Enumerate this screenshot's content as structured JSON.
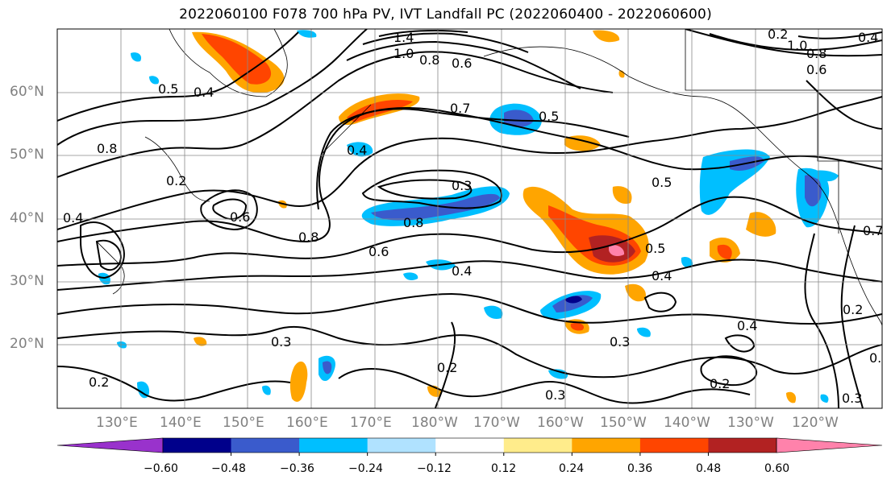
{
  "title": "2022060100 F078 700 hPa PV, IVT Landfall PC (2022060400 - 2022060600)",
  "map": {
    "lat_ticks": [
      "60°N",
      "50°N",
      "40°N",
      "30°N",
      "20°N"
    ],
    "lon_ticks": [
      "130°E",
      "140°E",
      "150°E",
      "160°E",
      "170°E",
      "180°W",
      "170°W",
      "160°W",
      "150°W",
      "140°W",
      "130°W",
      "120°W"
    ],
    "gridlines": true
  },
  "contour_labels": [
    "1.4",
    "1.0",
    "0.8",
    "0.6",
    "0.7",
    "0.5",
    "0.4",
    "0.3",
    "0.5",
    "0.8",
    "0.8",
    "0.6",
    "0.4",
    "0.5",
    "0.4",
    "0.3",
    "0.2",
    "0.3",
    "0.4",
    "0.3",
    "0.2",
    "0.2",
    "0.3",
    "0.2",
    "1.0",
    "0.8",
    "0.6",
    "0.4",
    "0.7",
    "0.2",
    "0.2",
    "0.2",
    "0.6",
    "0.8",
    "0.5",
    "0.4",
    "0.4",
    "0.8"
  ],
  "colorbar": {
    "ticks": [
      "−0.60",
      "−0.48",
      "−0.36",
      "−0.24",
      "−0.12",
      "0.12",
      "0.24",
      "0.36",
      "0.48",
      "0.60"
    ],
    "colors": [
      "#9932cc",
      "#00008b",
      "#3a5bcc",
      "#00bfff",
      "#b0e2ff",
      "#ffffff",
      "#ffec8b",
      "#ffa500",
      "#ff4500",
      "#b22222",
      "#ff82ab"
    ]
  }
}
